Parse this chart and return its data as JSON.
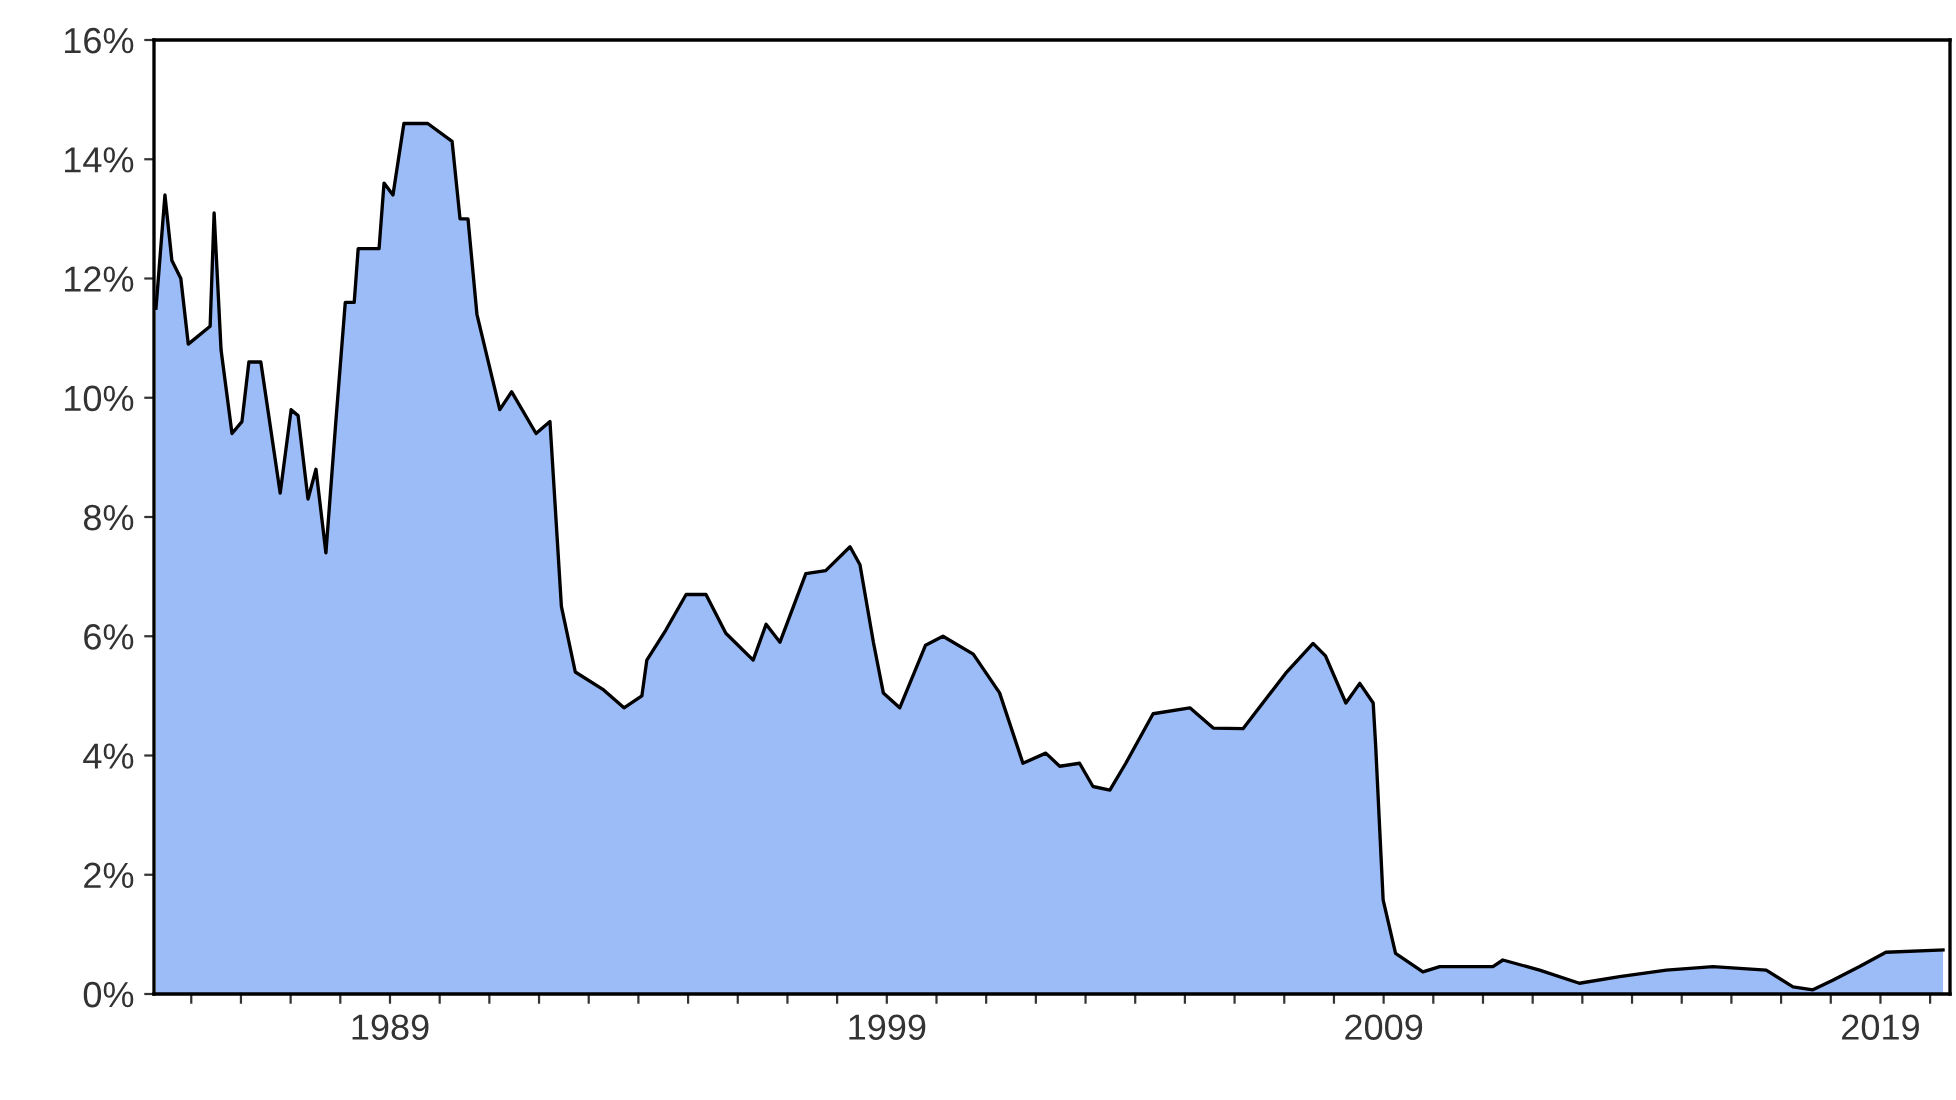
{
  "chart_data": {
    "type": "area",
    "x": [
      1984.29,
      1984.47,
      1984.61,
      1984.79,
      1984.94,
      1985.38,
      1985.46,
      1985.6,
      1985.82,
      1986.02,
      1986.16,
      1986.4,
      1986.79,
      1987.01,
      1987.15,
      1987.35,
      1987.51,
      1987.71,
      1987.91,
      1988.1,
      1988.28,
      1988.36,
      1988.78,
      1988.88,
      1989.06,
      1989.28,
      1989.76,
      1990.25,
      1990.41,
      1990.57,
      1990.75,
      1991.21,
      1991.45,
      1991.94,
      1992.22,
      1992.45,
      1992.73,
      1993.3,
      1993.71,
      1994.07,
      1994.17,
      1994.55,
      1994.96,
      1995.36,
      1995.76,
      1996.31,
      1996.57,
      1996.85,
      1997.37,
      1997.77,
      1998.26,
      1998.46,
      1998.73,
      1998.93,
      1999.26,
      1999.78,
      2000.13,
      2000.74,
      2001.27,
      2001.74,
      2002.2,
      2002.48,
      2002.88,
      2003.15,
      2003.49,
      2003.81,
      2004.36,
      2005.1,
      2005.57,
      2006.17,
      2007.03,
      2007.58,
      2007.83,
      2008.24,
      2008.52,
      2008.79,
      2008.84,
      2008.99,
      2009.24,
      2009.79,
      2010.13,
      2011.2,
      2011.4,
      2012.14,
      2012.94,
      2013.75,
      2014.69,
      2015.63,
      2016.7,
      2017.24,
      2017.64,
      2018.04,
      2018.58,
      2019.11,
      2020.26
    ],
    "series": [
      {
        "color": "#9cbcf7",
        "values": [
          11.5,
          13.4,
          12.3,
          12.0,
          10.9,
          11.2,
          13.1,
          10.8,
          9.4,
          9.6,
          10.6,
          10.6,
          8.4,
          9.8,
          9.7,
          8.3,
          8.8,
          7.4,
          9.6,
          11.6,
          11.6,
          12.5,
          12.5,
          13.6,
          13.4,
          14.6,
          14.6,
          14.3,
          13.0,
          13.0,
          11.4,
          9.8,
          10.1,
          9.4,
          9.6,
          6.5,
          5.4,
          5.1,
          4.8,
          5.0,
          5.6,
          6.1,
          6.7,
          6.7,
          6.05,
          5.6,
          6.2,
          5.9,
          7.05,
          7.1,
          7.5,
          7.2,
          5.9,
          5.05,
          4.8,
          5.85,
          6.0,
          5.7,
          5.05,
          3.87,
          4.04,
          3.82,
          3.87,
          3.48,
          3.42,
          3.87,
          4.7,
          4.8,
          4.46,
          4.45,
          5.38,
          5.88,
          5.67,
          4.88,
          5.21,
          4.88,
          4.16,
          1.58,
          0.68,
          0.37,
          0.46,
          0.46,
          0.57,
          0.4,
          0.18,
          0.29,
          0.4,
          0.46,
          0.4,
          0.12,
          0.07,
          0.23,
          0.46,
          0.7,
          0.74
        ]
      }
    ],
    "xlim": [
      1984.25,
      2020.4
    ],
    "xticks": [
      {
        "value": 1985,
        "label": null
      },
      {
        "value": 1986,
        "label": null
      },
      {
        "value": 1987,
        "label": null
      },
      {
        "value": 1988,
        "label": null
      },
      1989,
      {
        "value": 1990,
        "label": null
      },
      {
        "value": 1991,
        "label": null
      },
      {
        "value": 1992,
        "label": null
      },
      {
        "value": 1993,
        "label": null
      },
      {
        "value": 1994,
        "label": null
      },
      {
        "value": 1995,
        "label": null
      },
      {
        "value": 1996,
        "label": null
      },
      {
        "value": 1997,
        "label": null
      },
      {
        "value": 1998,
        "label": null
      },
      1999,
      {
        "value": 2000,
        "label": null
      },
      {
        "value": 2001,
        "label": null
      },
      {
        "value": 2002,
        "label": null
      },
      {
        "value": 2003,
        "label": null
      },
      {
        "value": 2004,
        "label": null
      },
      {
        "value": 2005,
        "label": null
      },
      {
        "value": 2006,
        "label": null
      },
      {
        "value": 2007,
        "label": null
      },
      {
        "value": 2008,
        "label": null
      },
      2009,
      {
        "value": 2010,
        "label": null
      },
      {
        "value": 2011,
        "label": null
      },
      {
        "value": 2012,
        "label": null
      },
      {
        "value": 2013,
        "label": null
      },
      {
        "value": 2014,
        "label": null
      },
      {
        "value": 2015,
        "label": null
      },
      {
        "value": 2016,
        "label": null
      },
      {
        "value": 2017,
        "label": null
      },
      {
        "value": 2018,
        "label": null
      },
      2019,
      {
        "value": 2020,
        "label": null
      }
    ],
    "ylim": [
      0,
      16
    ],
    "yticks": [
      {
        "value": 0,
        "label": "0%"
      },
      {
        "value": 2,
        "label": "2%"
      },
      {
        "value": 4,
        "label": "4%"
      },
      {
        "value": 6,
        "label": "6%"
      },
      {
        "value": 8,
        "label": "8%"
      },
      {
        "value": 10,
        "label": "10%"
      },
      {
        "value": 12,
        "label": "12%"
      },
      {
        "value": 14,
        "label": "14%"
      },
      {
        "value": 16,
        "label": "16%"
      }
    ],
    "grid": false,
    "legend": false
  }
}
